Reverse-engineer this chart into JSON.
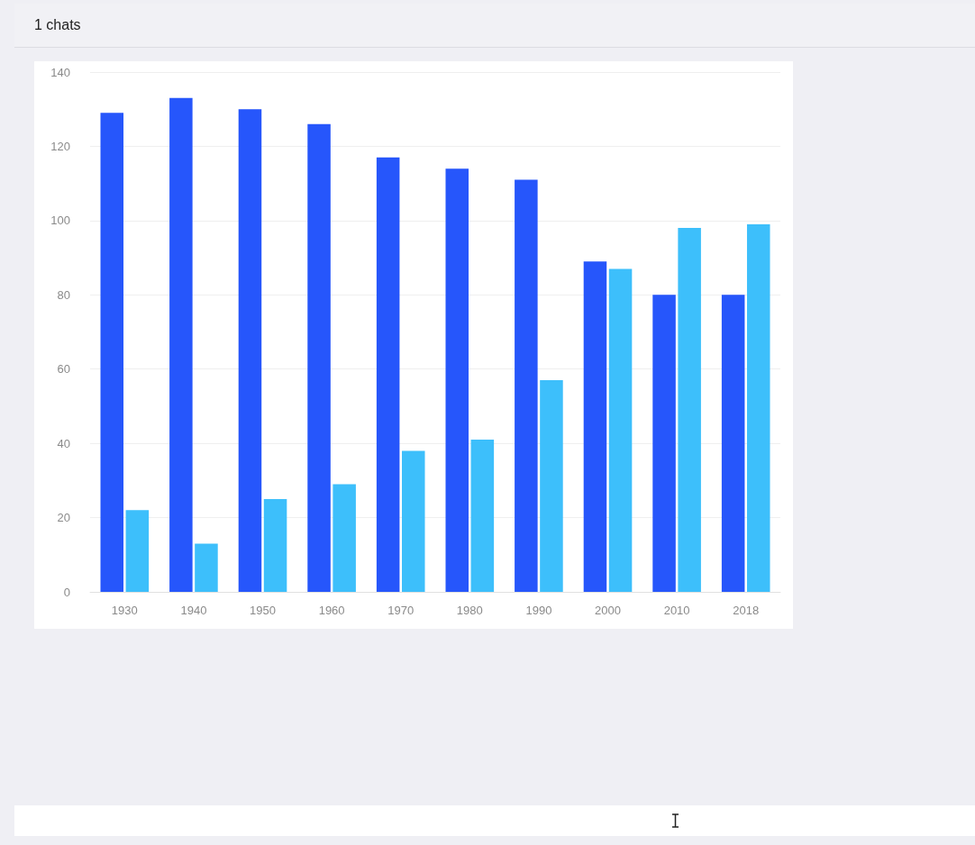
{
  "chart_data": {
    "type": "bar",
    "title": "1 chats",
    "categories": [
      "1930",
      "1940",
      "1950",
      "1960",
      "1970",
      "1980",
      "1990",
      "2000",
      "2010",
      "2018"
    ],
    "series": [
      {
        "color": "#2656fb",
        "values": [
          129,
          133,
          130,
          126,
          117,
          114,
          111,
          89,
          80,
          80
        ]
      },
      {
        "color": "#3dbffb",
        "values": [
          22,
          13,
          25,
          29,
          38,
          41,
          57,
          87,
          98,
          99
        ]
      }
    ],
    "ylim": [
      0,
      140
    ],
    "yticks": [
      0,
      20,
      40,
      60,
      80,
      100,
      120,
      140
    ],
    "grid": "y"
  }
}
